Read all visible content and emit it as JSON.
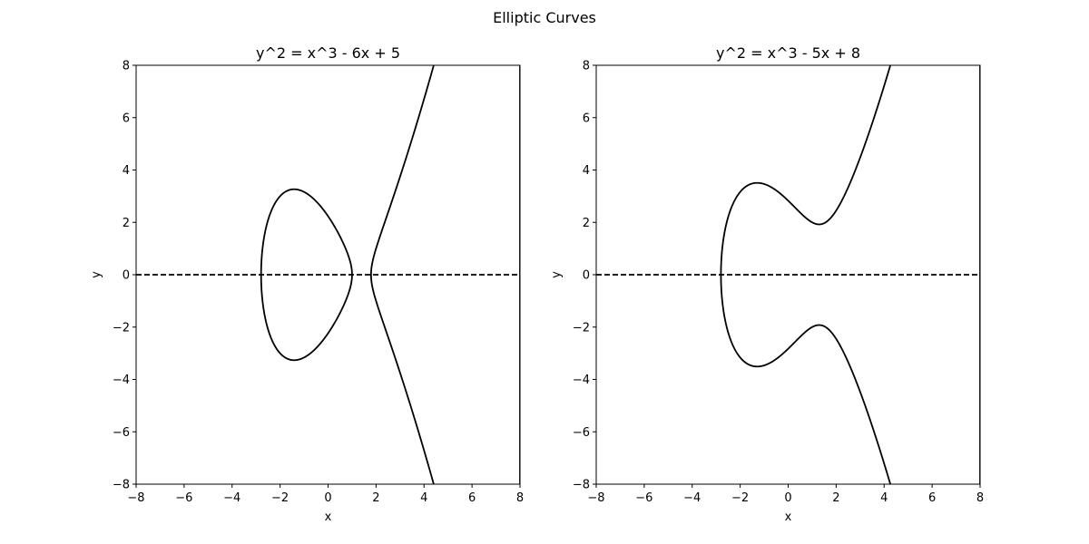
{
  "figure": {
    "suptitle": "Elliptic Curves"
  },
  "chart_data": [
    {
      "type": "line",
      "title": "y^2 = x^3 - 6x + 5",
      "xlabel": "x",
      "ylabel": "y",
      "xlim": [
        -8,
        8
      ],
      "ylim": [
        -8,
        8
      ],
      "xticks": [
        -8,
        -6,
        -4,
        -2,
        0,
        2,
        4,
        6,
        8
      ],
      "yticks": [
        -8,
        -6,
        -4,
        -2,
        0,
        2,
        4,
        6,
        8
      ],
      "xtick_labels": [
        "−8",
        "−6",
        "−4",
        "−2",
        "0",
        "2",
        "4",
        "6",
        "8"
      ],
      "ytick_labels": [
        "−8",
        "−6",
        "−4",
        "−2",
        "0",
        "2",
        "4",
        "6",
        "8"
      ],
      "equation": {
        "a": -6,
        "b": 5
      },
      "curve_color": "#000000",
      "baseline": {
        "y": 0,
        "style": "dashed",
        "color": "#000000"
      },
      "grid": false,
      "legend": "none"
    },
    {
      "type": "line",
      "title": "y^2 = x^3 - 5x + 8",
      "xlabel": "x",
      "ylabel": "y",
      "xlim": [
        -8,
        8
      ],
      "ylim": [
        -8,
        8
      ],
      "xticks": [
        -8,
        -6,
        -4,
        -2,
        0,
        2,
        4,
        6,
        8
      ],
      "yticks": [
        -8,
        -6,
        -4,
        -2,
        0,
        2,
        4,
        6,
        8
      ],
      "xtick_labels": [
        "−8",
        "−6",
        "−4",
        "−2",
        "0",
        "2",
        "4",
        "6",
        "8"
      ],
      "ytick_labels": [
        "−8",
        "−6",
        "−4",
        "−2",
        "0",
        "2",
        "4",
        "6",
        "8"
      ],
      "equation": {
        "a": -5,
        "b": 8
      },
      "curve_color": "#000000",
      "baseline": {
        "y": 0,
        "style": "dashed",
        "color": "#000000"
      },
      "grid": false,
      "legend": "none"
    }
  ]
}
